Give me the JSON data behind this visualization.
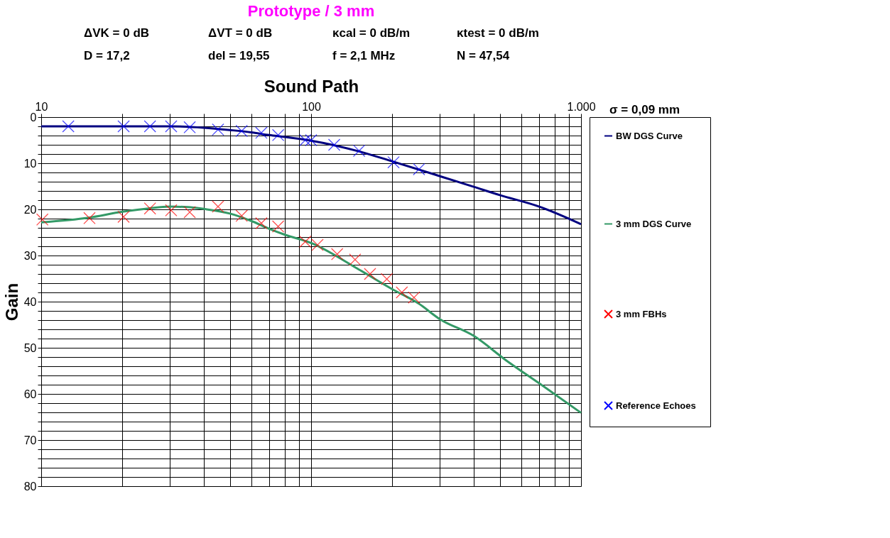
{
  "chart_data": {
    "type": "line",
    "title": "Prototype / 3 mm",
    "xlabel": "Sound Path",
    "ylabel": "Gain",
    "annotations": [
      "ΔVK = 0 dB",
      "ΔVT = 0 dB",
      "κcal = 0 dB/m",
      "κtest = 0 dB/m",
      "D = 17,2",
      "del = 19,55",
      "f = 2,1 MHz",
      "N = 47,54",
      "σ = 0,09 mm"
    ],
    "log": "x",
    "grid": true,
    "legend": "right",
    "xlim": [
      10,
      1000
    ],
    "ylim": [
      80,
      0
    ],
    "xticks": [
      10,
      {
        "value": 20,
        "label": null
      },
      {
        "value": 30,
        "label": null
      },
      {
        "value": 40,
        "label": null
      },
      {
        "value": 50,
        "label": null
      },
      {
        "value": 60,
        "label": null
      },
      {
        "value": 70,
        "label": null
      },
      {
        "value": 80,
        "label": null
      },
      {
        "value": 90,
        "label": null
      },
      100,
      {
        "value": 200,
        "label": null
      },
      {
        "value": 300,
        "label": null
      },
      {
        "value": 400,
        "label": null
      },
      {
        "value": 500,
        "label": null
      },
      {
        "value": 600,
        "label": null
      },
      {
        "value": 700,
        "label": null
      },
      {
        "value": 800,
        "label": null
      },
      {
        "value": 900,
        "label": null
      },
      {
        "value": 1000,
        "label": "1.000"
      }
    ],
    "yticks": [
      0,
      {
        "value": 2,
        "label": null
      },
      {
        "value": 4,
        "label": null
      },
      {
        "value": 6,
        "label": null
      },
      {
        "value": 8,
        "label": null
      },
      10,
      {
        "value": 12,
        "label": null
      },
      {
        "value": 14,
        "label": null
      },
      {
        "value": 16,
        "label": null
      },
      {
        "value": 18,
        "label": null
      },
      20,
      {
        "value": 22,
        "label": null
      },
      {
        "value": 24,
        "label": null
      },
      {
        "value": 26,
        "label": null
      },
      {
        "value": 28,
        "label": null
      },
      30,
      {
        "value": 32,
        "label": null
      },
      {
        "value": 34,
        "label": null
      },
      {
        "value": 36,
        "label": null
      },
      {
        "value": 38,
        "label": null
      },
      40,
      {
        "value": 42,
        "label": null
      },
      {
        "value": 44,
        "label": null
      },
      {
        "value": 46,
        "label": null
      },
      {
        "value": 48,
        "label": null
      },
      50,
      {
        "value": 52,
        "label": null
      },
      {
        "value": 54,
        "label": null
      },
      {
        "value": 56,
        "label": null
      },
      {
        "value": 58,
        "label": null
      },
      60,
      {
        "value": 62,
        "label": null
      },
      {
        "value": 64,
        "label": null
      },
      {
        "value": 66,
        "label": null
      },
      {
        "value": 68,
        "label": null
      },
      70,
      {
        "value": 72,
        "label": null
      },
      {
        "value": 74,
        "label": null
      },
      {
        "value": 76,
        "label": null
      },
      {
        "value": 78,
        "label": null
      },
      80
    ],
    "series": [
      {
        "name": "BW DGS Curve",
        "type": "line",
        "color": "#000080",
        "marker": "none",
        "x": [
          10,
          20,
          30,
          40,
          50,
          60,
          70,
          80,
          100,
          150,
          200,
          300,
          400,
          500,
          700,
          1000
        ],
        "values": [
          2.0,
          2.0,
          2.0,
          2.3,
          2.8,
          3.3,
          3.9,
          4.3,
          5.1,
          7.4,
          9.6,
          12.8,
          15.1,
          16.9,
          19.4,
          23.2
        ]
      },
      {
        "name": "3 mm DGS Curve",
        "type": "line",
        "color": "#339966",
        "marker": "none",
        "x": [
          10,
          15,
          20,
          25,
          30,
          35,
          40,
          50,
          60,
          70,
          80,
          100,
          150,
          200,
          250,
          300,
          400,
          530,
          720,
          1000
        ],
        "values": [
          22.8,
          21.8,
          20.5,
          19.8,
          19.4,
          19.5,
          19.9,
          20.9,
          22.5,
          24.2,
          25.5,
          27.3,
          33.0,
          37.3,
          40.4,
          43.8,
          47.4,
          52.8,
          58.2,
          64.1
        ]
      },
      {
        "name": "3 mm FBHs",
        "type": "scatter",
        "color": "#ff0000",
        "marker": "cross",
        "x": [
          10.1,
          15.1,
          20.2,
          25.3,
          30.3,
          35.5,
          45.2,
          55.3,
          65.4,
          75.5,
          95.1,
          105.6,
          124.9,
          145.5,
          165.3,
          190.8,
          216.9,
          240.5
        ],
        "values": [
          22.2,
          21.9,
          21.6,
          19.8,
          20.2,
          20.6,
          19.4,
          21.4,
          23.0,
          23.7,
          27.0,
          27.7,
          29.7,
          30.9,
          34.0,
          35.1,
          38.0,
          39.1
        ]
      },
      {
        "name": "Reference Echoes",
        "type": "scatter",
        "color": "#0000ff",
        "marker": "cross",
        "x": [
          12.6,
          20.2,
          25.3,
          30.3,
          35.5,
          45.2,
          55.3,
          65.4,
          75.5,
          95.1,
          100,
          121.8,
          150.6,
          202,
          251
        ],
        "values": [
          2.0,
          2.0,
          2.0,
          2.0,
          2.2,
          2.7,
          3.0,
          3.4,
          3.9,
          5.0,
          5.0,
          6.0,
          7.3,
          9.8,
          11.3
        ]
      }
    ]
  }
}
